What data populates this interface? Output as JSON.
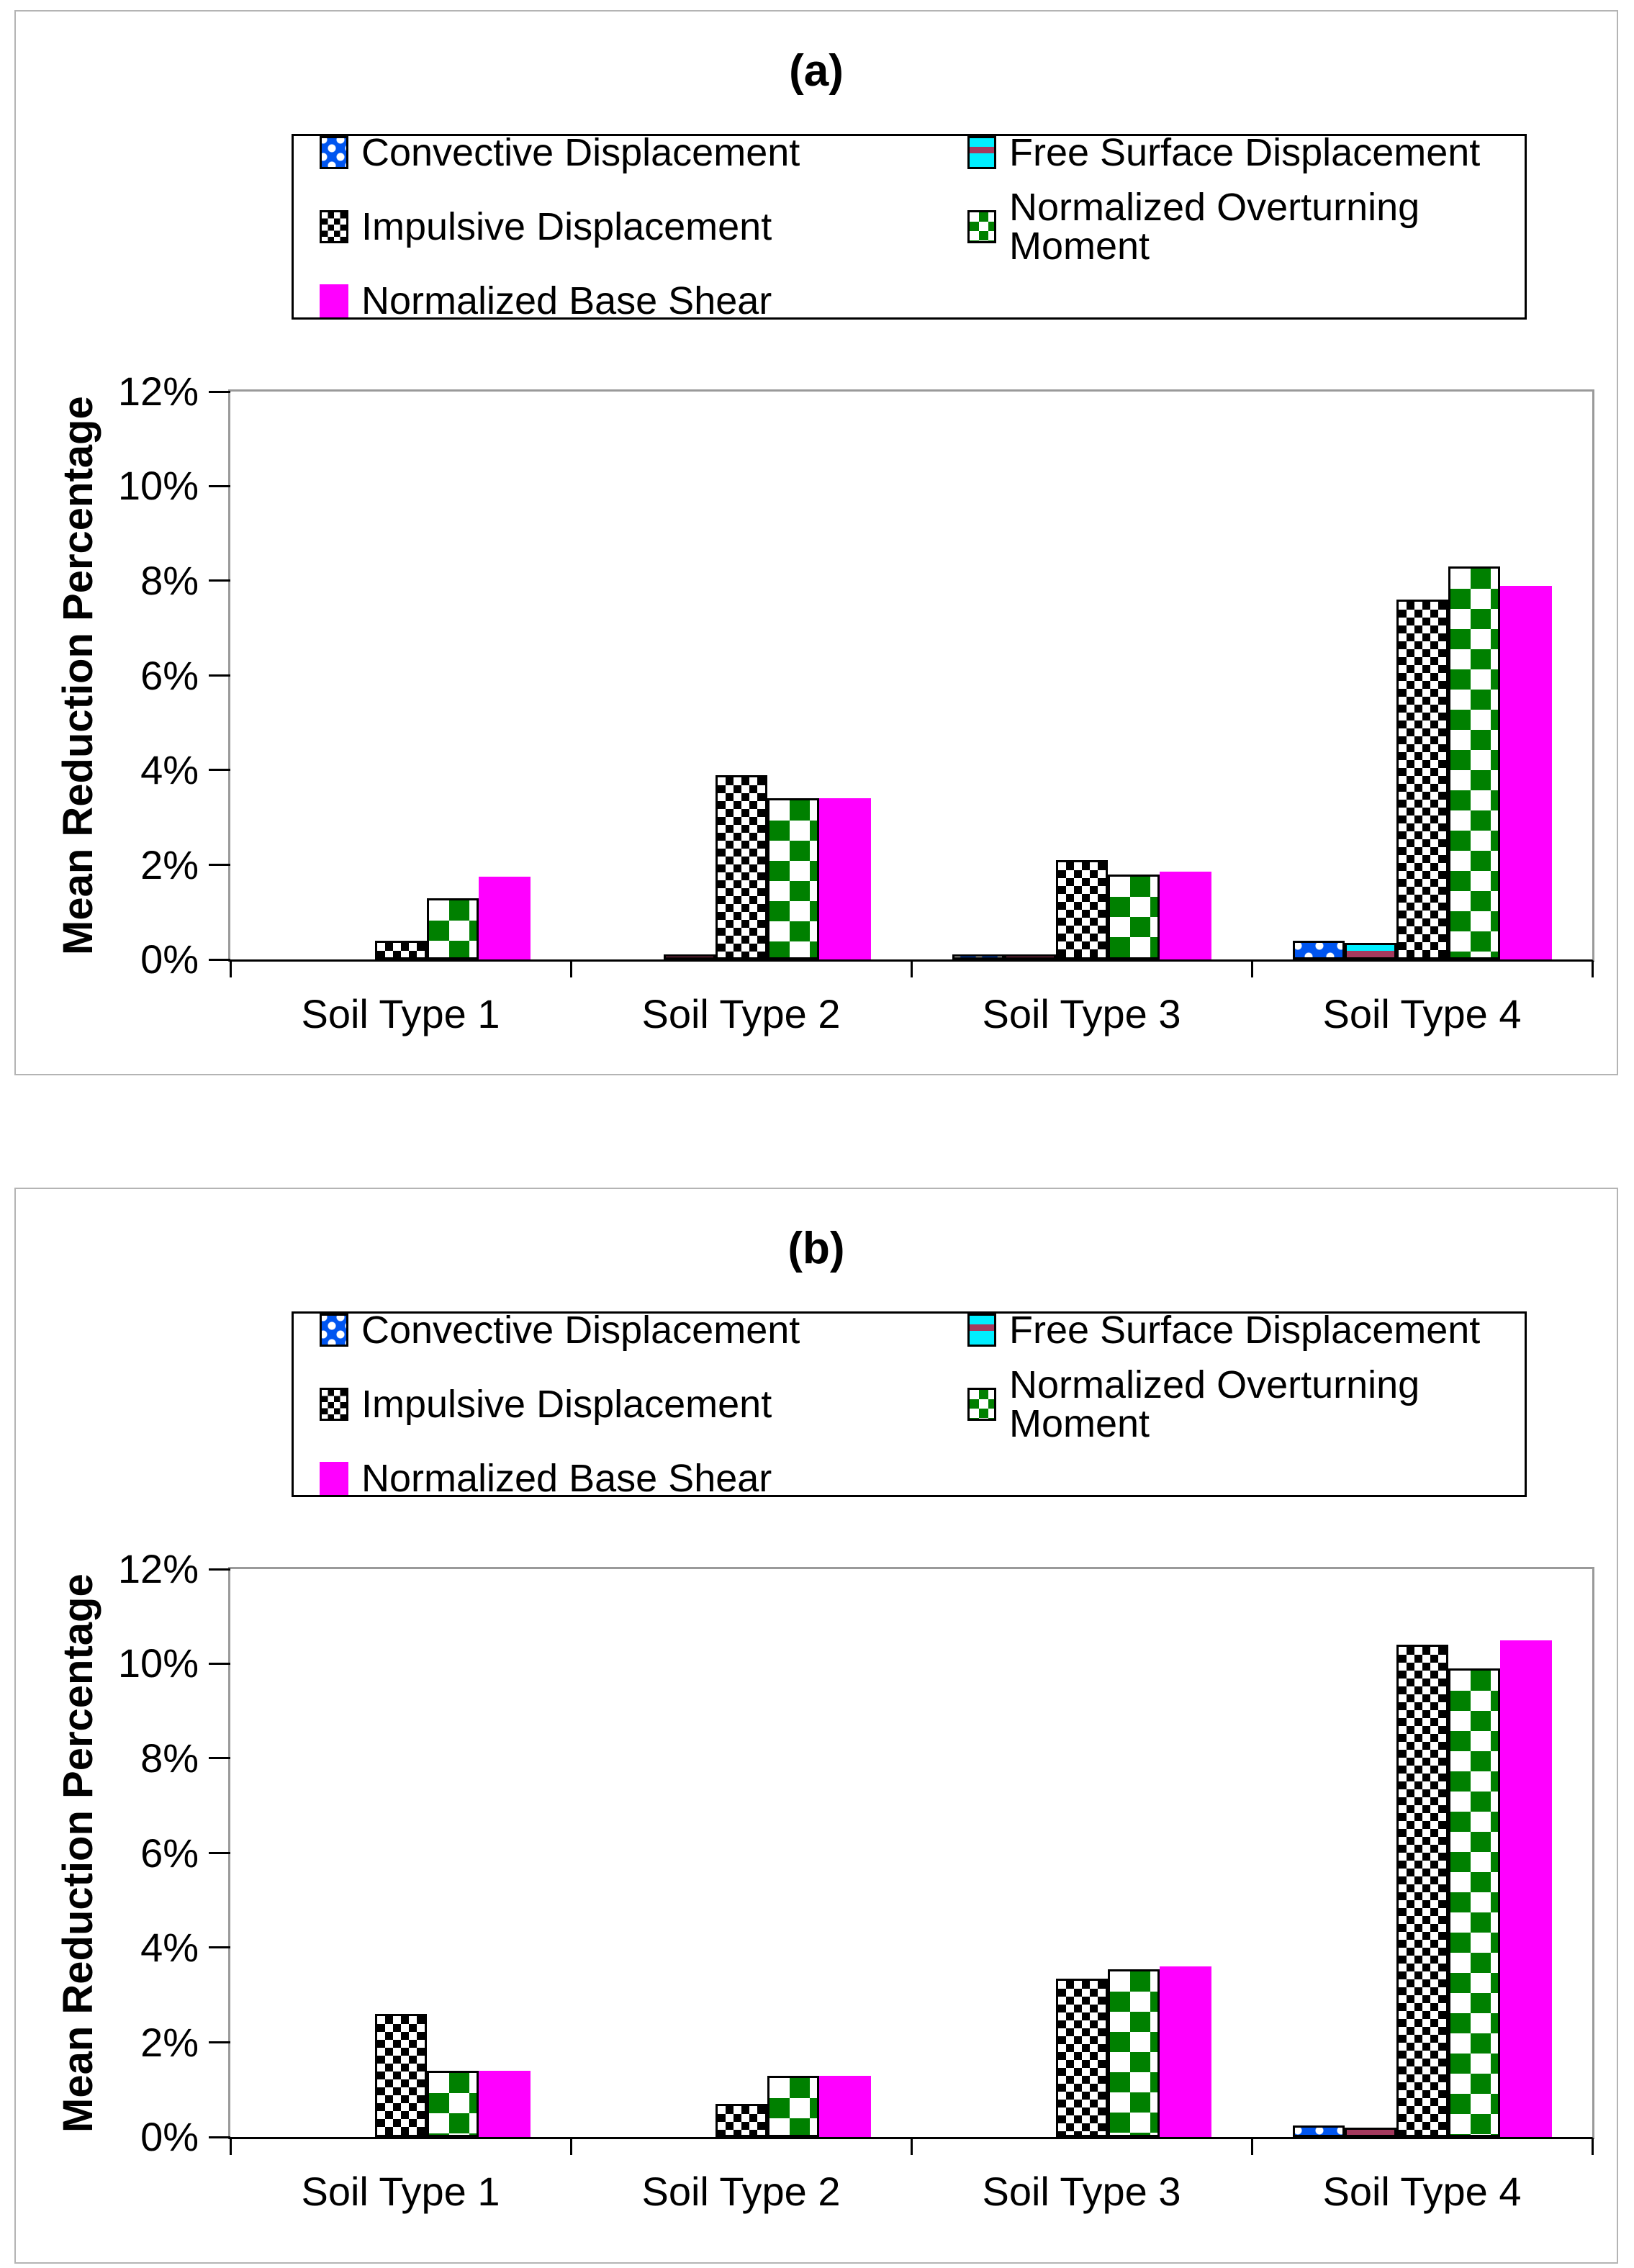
{
  "figure": {
    "background": "#ffffff",
    "panel_border_color": "#b4b4b4",
    "plot_border_color": "#9a9a9a",
    "axis_line_color": "#000000"
  },
  "y_axis": {
    "title": "Mean Reduction Percentage",
    "min": 0,
    "max": 12,
    "tick_step": 2,
    "tick_labels": [
      "0%",
      "2%",
      "4%",
      "6%",
      "8%",
      "10%",
      "12%"
    ]
  },
  "categories": [
    "Soil Type 1",
    "Soil Type 2",
    "Soil Type 3",
    "Soil Type 4"
  ],
  "legend": {
    "columns": 2,
    "items": [
      {
        "label": "Convective Displacement",
        "pattern": "blue-dotted",
        "color": "#0055f0"
      },
      {
        "label": "Free Surface Displacement",
        "pattern": "cyan-striped",
        "color": "#00eeff",
        "stripe_color": "#a53a5e"
      },
      {
        "label": "Impulsive Displacement",
        "pattern": "checker-black",
        "color": "#000000"
      },
      {
        "label": "Normalized Overturning Moment",
        "pattern": "checker-green",
        "color": "#008000"
      },
      {
        "label": "Normalized Base Shear",
        "pattern": "solid-magenta",
        "color": "#ff00ff"
      }
    ]
  },
  "chart_data": [
    {
      "type": "bar",
      "title": "(a)",
      "categories": [
        "Soil Type 1",
        "Soil Type 2",
        "Soil Type 3",
        "Soil Type 4"
      ],
      "series": [
        {
          "name": "Convective Displacement",
          "values": [
            0,
            0,
            0.1,
            0.4
          ]
        },
        {
          "name": "Free Surface Displacement",
          "values": [
            0,
            0.1,
            0.1,
            0.35
          ]
        },
        {
          "name": "Impulsive Displacement",
          "values": [
            0.4,
            3.9,
            2.1,
            7.6
          ]
        },
        {
          "name": "Normalized Overturning Moment",
          "values": [
            1.3,
            3.4,
            1.8,
            8.3
          ]
        },
        {
          "name": "Normalized Base Shear",
          "values": [
            1.75,
            3.4,
            1.85,
            7.9
          ]
        }
      ],
      "xlabel": "",
      "ylabel": "Mean Reduction Percentage",
      "ylim": [
        0,
        12
      ],
      "ytick_format": "percent",
      "grid": false,
      "legend_position": "top"
    },
    {
      "type": "bar",
      "title": "(b)",
      "categories": [
        "Soil Type 1",
        "Soil Type 2",
        "Soil Type 3",
        "Soil Type 4"
      ],
      "series": [
        {
          "name": "Convective Displacement",
          "values": [
            0,
            0,
            0,
            0.25
          ]
        },
        {
          "name": "Free Surface Displacement",
          "values": [
            0,
            0,
            0,
            0.2
          ]
        },
        {
          "name": "Impulsive Displacement",
          "values": [
            2.6,
            0.7,
            3.35,
            10.4
          ]
        },
        {
          "name": "Normalized Overturning Moment",
          "values": [
            1.4,
            1.3,
            3.55,
            9.9
          ]
        },
        {
          "name": "Normalized Base Shear",
          "values": [
            1.4,
            1.3,
            3.6,
            10.5
          ]
        }
      ],
      "xlabel": "",
      "ylabel": "Mean Reduction Percentage",
      "ylim": [
        0,
        12
      ],
      "ytick_format": "percent",
      "grid": false,
      "legend_position": "top"
    }
  ]
}
